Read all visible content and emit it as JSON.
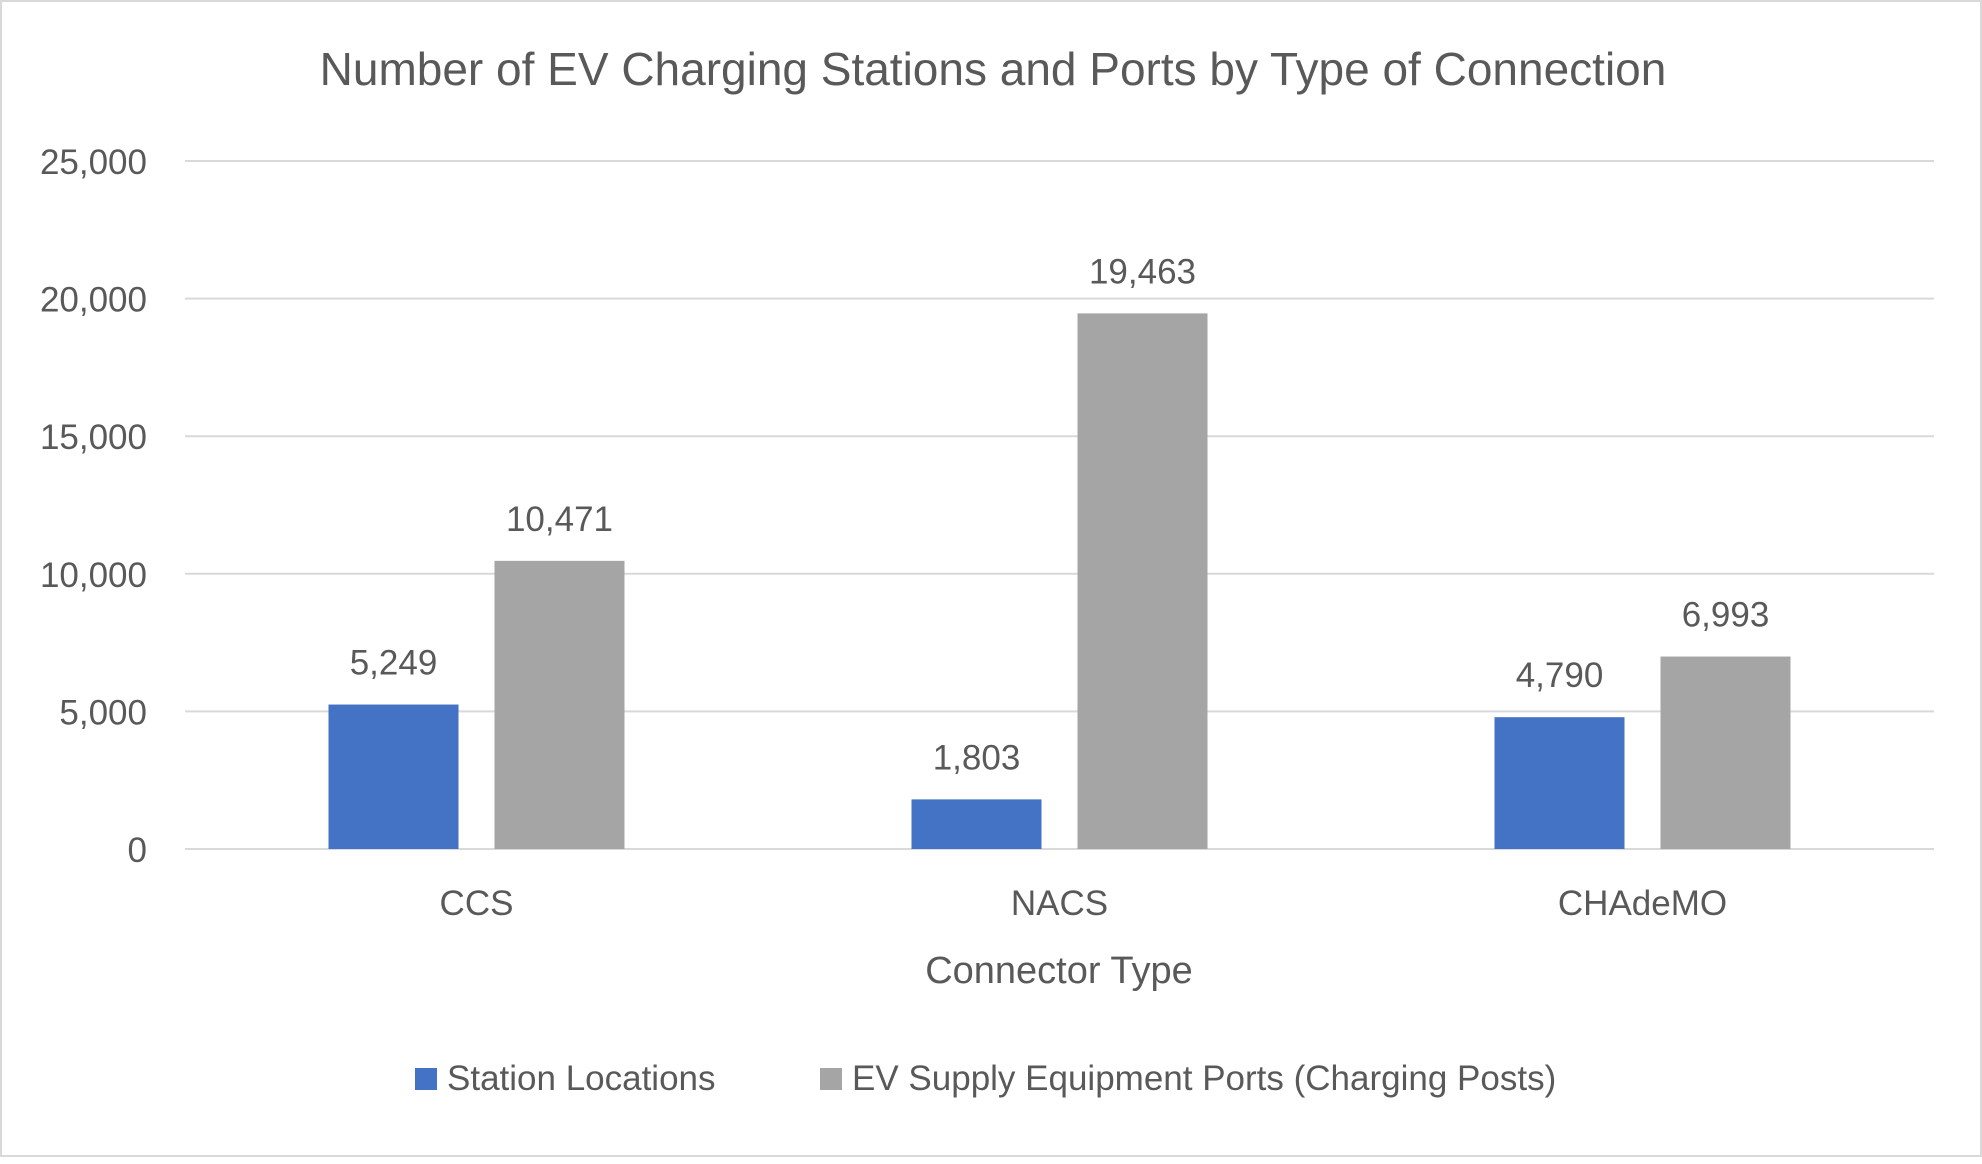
{
  "chart_data": {
    "type": "bar",
    "title": "Number of EV Charging Stations and Ports by Type of Connection",
    "xlabel": "Connector Type",
    "ylabel": "",
    "categories": [
      "CCS",
      "NACS",
      "CHAdeMO"
    ],
    "series": [
      {
        "name": "Station Locations",
        "values": [
          5249,
          1803,
          4790
        ],
        "labels": [
          "5,249",
          "1,803",
          "4,790"
        ],
        "color": "#4472c4"
      },
      {
        "name": "EV Supply Equipment Ports (Charging Posts)",
        "values": [
          10471,
          19463,
          6993
        ],
        "labels": [
          "10,471",
          "19,463",
          "6,993"
        ],
        "color": "#a5a5a5"
      }
    ],
    "ylim": [
      0,
      25000
    ],
    "yticks": [
      0,
      5000,
      10000,
      15000,
      20000,
      25000
    ],
    "ytick_labels": [
      "0",
      "5,000",
      "10,000",
      "15,000",
      "20,000",
      "25,000"
    ],
    "grid": true,
    "legend_position": "bottom",
    "colors": {
      "text": "#595959",
      "grid": "#d9d9d9",
      "border": "#d9d9d9"
    }
  }
}
